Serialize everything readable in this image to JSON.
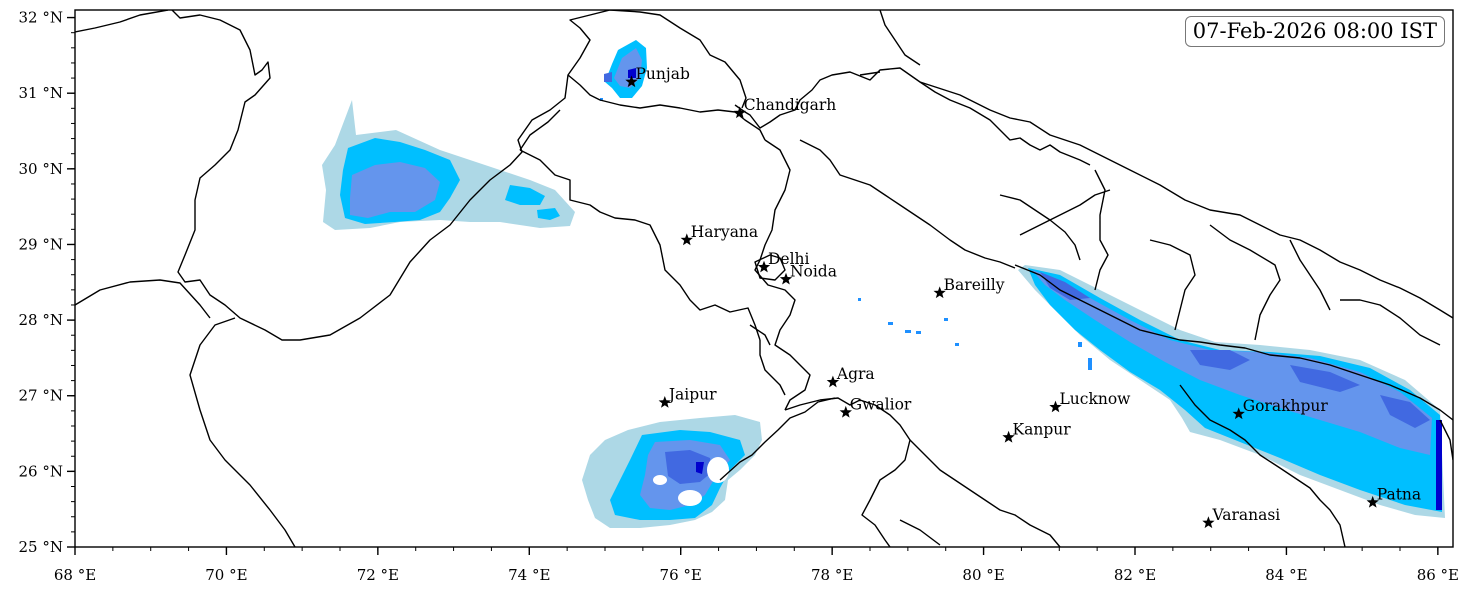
{
  "timestamp": "07-Feb-2026 08:00 IST",
  "x_ticks": [
    "68 °E",
    "70 °E",
    "72 °E",
    "74 °E",
    "76 °E",
    "78 °E",
    "80 °E",
    "82 °E",
    "84 °E",
    "86 °E"
  ],
  "y_ticks": [
    "32 °N",
    "31 °N",
    "30 °N",
    "29 °N",
    "28 °N",
    "27 °N",
    "26 °N",
    "25 °N"
  ],
  "map_extent": {
    "lon": [
      68,
      86.2
    ],
    "lat": [
      25,
      32.1
    ]
  },
  "colors": {
    "level1": "#add8e6",
    "level2": "#00bfff",
    "level3": "#1e90ff",
    "level4": "#6495ed",
    "level5": "#4169e1",
    "level6": "#0000cd",
    "boundary": "#000000",
    "background": "#ffffff"
  },
  "cities": [
    {
      "name": "Punjab",
      "lon": 75.35,
      "lat": 31.15
    },
    {
      "name": "Chandigarh",
      "lon": 76.78,
      "lat": 30.74
    },
    {
      "name": "Haryana",
      "lon": 76.08,
      "lat": 29.06
    },
    {
      "name": "Delhi",
      "lon": 77.1,
      "lat": 28.7
    },
    {
      "name": "Noida",
      "lon": 77.39,
      "lat": 28.54
    },
    {
      "name": "Bareilly",
      "lon": 79.42,
      "lat": 28.36
    },
    {
      "name": "Agra",
      "lon": 78.01,
      "lat": 27.18
    },
    {
      "name": "Jaipur",
      "lon": 75.79,
      "lat": 26.91
    },
    {
      "name": "Gwalior",
      "lon": 78.18,
      "lat": 26.78
    },
    {
      "name": "Lucknow",
      "lon": 80.95,
      "lat": 26.85
    },
    {
      "name": "Kanpur",
      "lon": 80.33,
      "lat": 26.45
    },
    {
      "name": "Gorakhpur",
      "lon": 83.37,
      "lat": 26.76
    },
    {
      "name": "Varanasi",
      "lon": 82.97,
      "lat": 25.32
    },
    {
      "name": "Patna",
      "lon": 85.14,
      "lat": 25.59
    }
  ]
}
